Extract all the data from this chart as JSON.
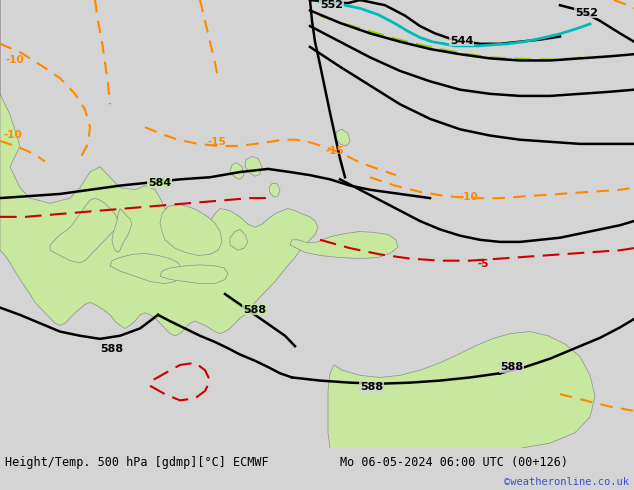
{
  "title_left": "Height/Temp. 500 hPa [gdmp][°C] ECMWF",
  "title_right": "Mo 06-05-2024 06:00 UTC (00+126)",
  "credit": "©weatheronline.co.uk",
  "bg_color": "#d4d4d4",
  "land_green": "#c8e8a0",
  "land_border": "#8c8c8c",
  "water_bg": "#d4d4d4",
  "figsize": [
    6.34,
    4.9
  ],
  "dpi": 100,
  "black_lw": 1.8,
  "orange_lw": 1.5,
  "red_lw": 1.5,
  "cyan_lw": 2.0,
  "lime_lw": 1.5
}
